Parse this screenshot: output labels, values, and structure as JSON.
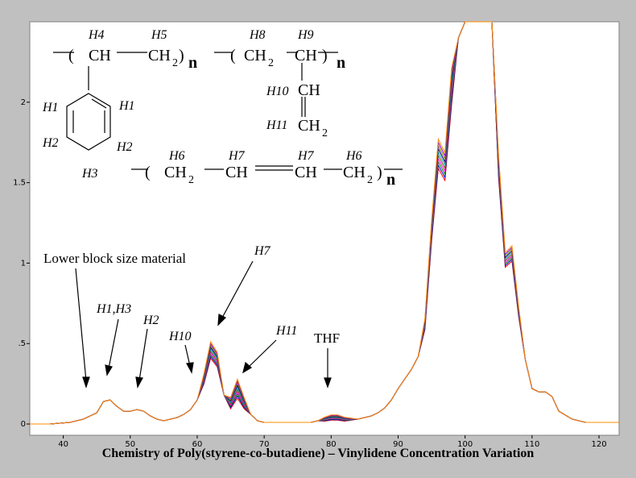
{
  "chart_data": {
    "type": "line",
    "xlabel": "Chemistry of Poly(styrene-co-butadiene) – Vinylidene Concentration Variation",
    "ylabel": "",
    "xlim": [
      35,
      123
    ],
    "ylim": [
      -0.07,
      2.5
    ],
    "x_ticks": [
      "40",
      "50",
      "60",
      "70",
      "80",
      "90",
      "100",
      "110",
      "120"
    ],
    "y_ticks": [
      "0",
      ".5",
      "1",
      "1.5",
      "2"
    ],
    "grid": false,
    "legend": "none",
    "series_colors": [
      "#ff0000",
      "#0000c8",
      "#008000",
      "#ff00ff",
      "#8b4513",
      "#00aaaa",
      "#000080",
      "#808000",
      "#9400d3",
      "#ff8c00"
    ],
    "x": [
      35,
      38,
      41,
      43,
      45,
      46,
      47,
      48,
      49,
      50,
      51,
      52,
      53,
      54,
      55,
      56,
      57,
      58,
      59,
      60,
      61,
      62,
      63,
      64,
      65,
      66,
      67,
      68,
      69,
      70,
      72,
      75,
      77,
      78,
      79,
      80,
      81,
      82,
      84,
      86,
      87,
      88,
      89,
      90,
      91,
      92,
      93,
      94,
      95,
      96,
      97,
      98,
      99,
      100,
      101,
      102,
      103,
      104,
      105,
      106,
      107,
      108,
      109,
      110,
      111,
      112,
      113,
      114,
      116,
      118,
      120,
      123
    ],
    "base_values": [
      0.0,
      0.0,
      0.01,
      0.03,
      0.07,
      0.14,
      0.15,
      0.11,
      0.08,
      0.08,
      0.09,
      0.08,
      0.05,
      0.03,
      0.02,
      0.03,
      0.04,
      0.06,
      0.09,
      0.15,
      0.28,
      0.46,
      0.4,
      0.18,
      0.13,
      0.22,
      0.13,
      0.06,
      0.02,
      0.01,
      0.01,
      0.01,
      0.01,
      0.02,
      0.03,
      0.04,
      0.04,
      0.03,
      0.03,
      0.05,
      0.07,
      0.1,
      0.15,
      0.22,
      0.28,
      0.34,
      0.42,
      0.62,
      1.2,
      1.68,
      1.6,
      2.1,
      2.4,
      2.5,
      2.5,
      2.5,
      2.5,
      2.5,
      1.6,
      1.02,
      1.06,
      0.7,
      0.4,
      0.22,
      0.2,
      0.2,
      0.17,
      0.08,
      0.03,
      0.01,
      0.01,
      0.01
    ],
    "annotations": {
      "lower_block": "Lower block size material",
      "h1h3": "H1,H3",
      "h2": "H2",
      "h10": "H10",
      "h7": "H7",
      "h11": "H11",
      "thf": "THF"
    },
    "structure_labels": {
      "h4": "H4",
      "h5": "H5",
      "h8": "H8",
      "h9": "H9",
      "h10": "H10",
      "h11": "H11",
      "h1a": "H1",
      "h1b": "H1",
      "h2a": "H2",
      "h2b": "H2",
      "h3": "H3",
      "h6a": "H6",
      "h7a": "H7",
      "h7b": "H7",
      "h6b": "H6"
    },
    "formula_text": {
      "open": "(",
      "ch": "CH",
      "ch2": "CH",
      "sub2": "2",
      "close": ")",
      "n": "n"
    }
  }
}
